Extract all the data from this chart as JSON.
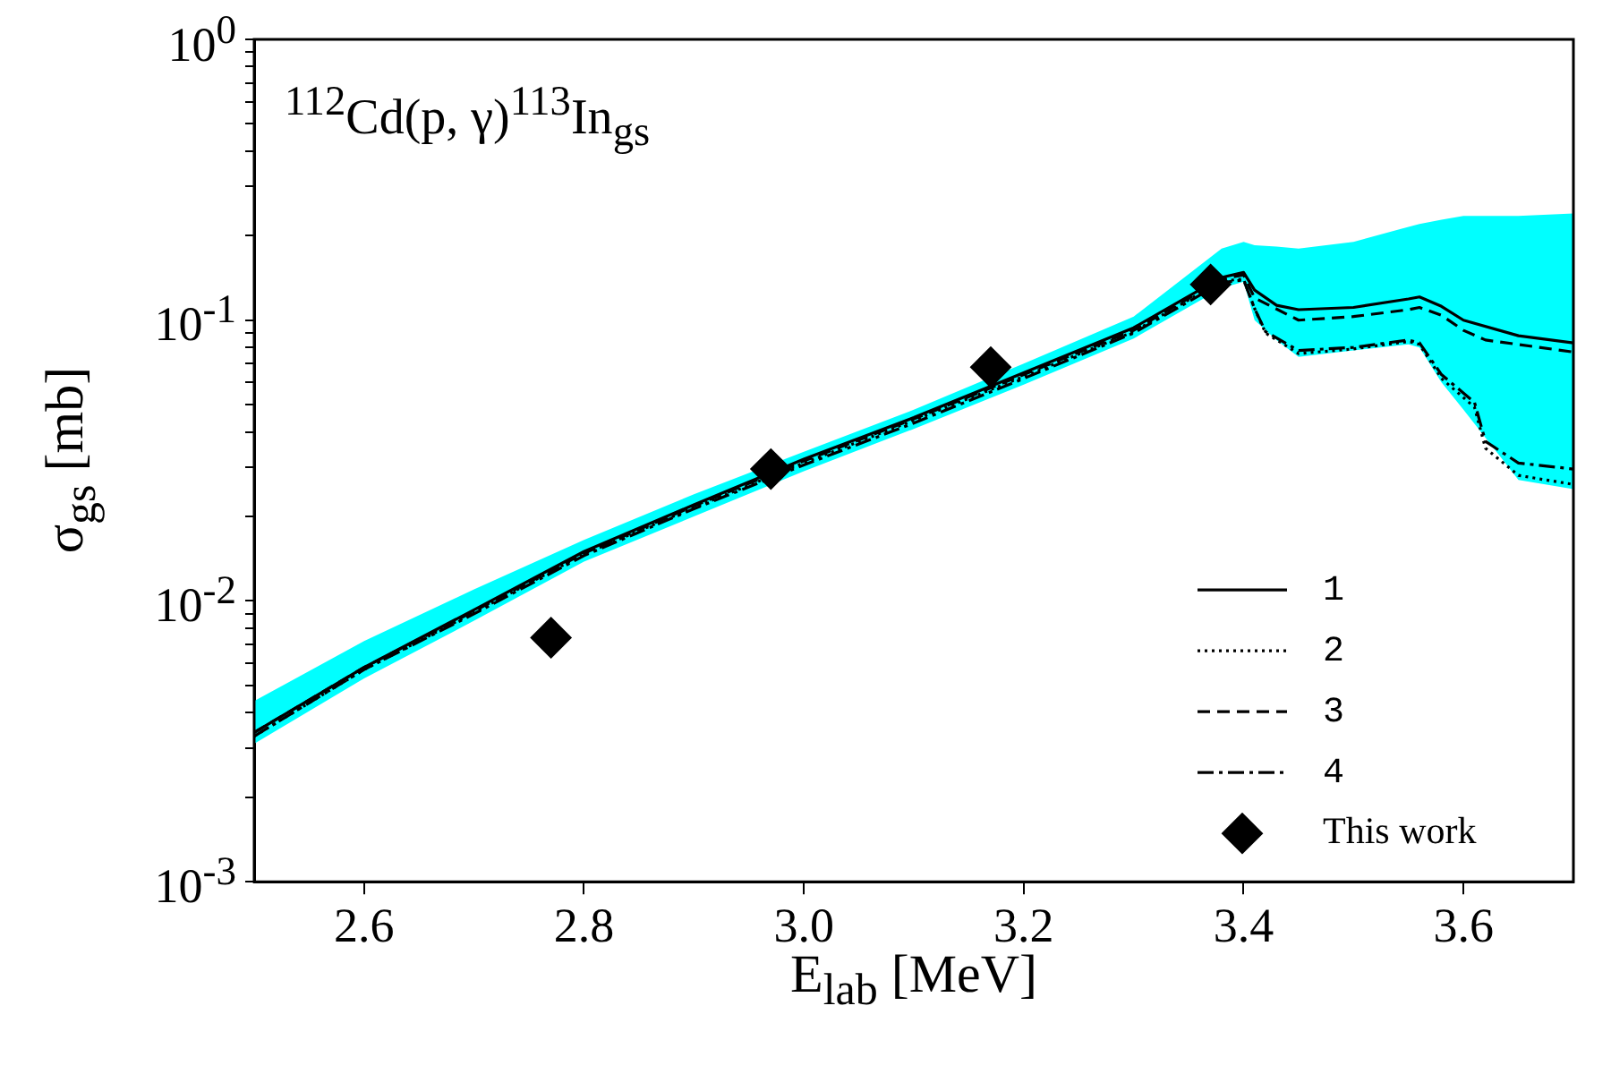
{
  "chart_data": {
    "type": "line",
    "annotations": [
      "$^{112}$Cd(p, γ)$^{113}$In$_{gs}$"
    ],
    "xlabel": "E$_{lab}$ [MeV]",
    "ylabel": "σ$_{gs}$ [mb]",
    "log": "y",
    "grid": false,
    "legend": "bottom right",
    "xlim": [
      2.5,
      3.7
    ],
    "xticks": [
      2.6,
      2.8,
      {
        "value": 3,
        "label": "3.0"
      },
      3.2,
      3.4,
      3.6
    ],
    "ylim": [
      0.001,
      1
    ],
    "yticks": [
      {
        "value": 0.001,
        "label": "10$^{-3}$"
      },
      {
        "value": 0.002,
        "label": null
      },
      {
        "value": 0.003,
        "label": null
      },
      {
        "value": 0.004,
        "label": null
      },
      {
        "value": 0.005,
        "label": null
      },
      {
        "value": 0.006,
        "label": null
      },
      {
        "value": 0.007,
        "label": null
      },
      {
        "value": 0.008,
        "label": null
      },
      {
        "value": 0.009,
        "label": null
      },
      {
        "value": 0.01,
        "label": "10$^{-2}$"
      },
      {
        "value": 0.02,
        "label": null
      },
      {
        "value": 0.03,
        "label": null
      },
      {
        "value": 0.04,
        "label": null
      },
      {
        "value": 0.05,
        "label": null
      },
      {
        "value": 0.06,
        "label": null
      },
      {
        "value": 0.07,
        "label": null
      },
      {
        "value": 0.08,
        "label": null
      },
      {
        "value": 0.09,
        "label": null
      },
      {
        "value": 0.1,
        "label": "10$^{-1}$"
      },
      {
        "value": 0.2,
        "label": null
      },
      {
        "value": 0.3,
        "label": null
      },
      {
        "value": 0.4,
        "label": null
      },
      {
        "value": 0.5,
        "label": null
      },
      {
        "value": 0.6,
        "label": null
      },
      {
        "value": 0.7,
        "label": null
      },
      {
        "value": 0.8,
        "label": null
      },
      {
        "value": 0.9,
        "label": null
      },
      {
        "value": 1,
        "label": "10$^{0}$"
      }
    ],
    "series": [
      {
        "name": "1",
        "line_style": "solid",
        "marker": "none",
        "color": "#000000",
        "x": [
          2.5,
          2.6,
          2.7,
          2.8,
          2.9,
          3.0,
          3.1,
          3.2,
          3.3,
          3.38,
          3.4,
          3.41,
          3.43,
          3.45,
          3.5,
          3.55,
          3.56,
          3.58,
          3.6,
          3.65,
          3.7
        ],
        "values": [
          0.0034,
          0.0058,
          0.0093,
          0.015,
          0.022,
          0.032,
          0.045,
          0.065,
          0.094,
          0.142,
          0.148,
          0.128,
          0.113,
          0.109,
          0.111,
          0.119,
          0.121,
          0.112,
          0.1,
          0.088,
          0.083
        ],
        "lower": [
          0.0031,
          0.0053,
          0.0085,
          0.0138,
          0.02,
          0.029,
          0.041,
          0.059,
          0.086,
          0.13,
          0.137,
          0.1,
          0.085,
          0.074,
          0.078,
          0.082,
          0.08,
          0.06,
          0.048,
          0.027,
          0.025
        ],
        "upper": [
          0.0044,
          0.0072,
          0.011,
          0.0165,
          0.024,
          0.034,
          0.048,
          0.07,
          0.103,
          0.18,
          0.19,
          0.185,
          0.183,
          0.18,
          0.19,
          0.215,
          0.22,
          0.228,
          0.235,
          0.235,
          0.24
        ]
      },
      {
        "name": "2",
        "line_style": "dotted",
        "marker": "none",
        "color": "#000000",
        "x": [
          2.5,
          2.6,
          2.7,
          2.8,
          2.9,
          3.0,
          3.1,
          3.2,
          3.3,
          3.38,
          3.4,
          3.41,
          3.42,
          3.45,
          3.5,
          3.55,
          3.56,
          3.58,
          3.6,
          3.61,
          3.62,
          3.65,
          3.7
        ],
        "values": [
          0.0033,
          0.0057,
          0.0091,
          0.0147,
          0.0215,
          0.031,
          0.044,
          0.063,
          0.091,
          0.138,
          0.14,
          0.11,
          0.09,
          0.076,
          0.079,
          0.084,
          0.082,
          0.062,
          0.053,
          0.049,
          0.035,
          0.028,
          0.026
        ]
      },
      {
        "name": "3",
        "line_style": "dashed",
        "marker": "none",
        "color": "#000000",
        "x": [
          2.5,
          2.6,
          2.7,
          2.8,
          2.9,
          3.0,
          3.1,
          3.2,
          3.3,
          3.38,
          3.4,
          3.41,
          3.45,
          3.5,
          3.55,
          3.56,
          3.58,
          3.6,
          3.62,
          3.7
        ],
        "values": [
          0.0034,
          0.0058,
          0.0092,
          0.0148,
          0.0218,
          0.0315,
          0.0445,
          0.064,
          0.092,
          0.14,
          0.145,
          0.12,
          0.1,
          0.103,
          0.109,
          0.111,
          0.104,
          0.092,
          0.085,
          0.077
        ]
      },
      {
        "name": "4",
        "line_style": "dashdot",
        "marker": "none",
        "color": "#000000",
        "x": [
          2.5,
          2.6,
          2.7,
          2.8,
          2.9,
          3.0,
          3.1,
          3.2,
          3.3,
          3.38,
          3.4,
          3.41,
          3.42,
          3.45,
          3.5,
          3.55,
          3.56,
          3.58,
          3.6,
          3.61,
          3.62,
          3.65,
          3.7
        ],
        "values": [
          0.0033,
          0.0057,
          0.009,
          0.0145,
          0.0213,
          0.0305,
          0.043,
          0.062,
          0.09,
          0.136,
          0.139,
          0.11,
          0.091,
          0.078,
          0.08,
          0.085,
          0.083,
          0.064,
          0.055,
          0.051,
          0.037,
          0.031,
          0.0295
        ]
      },
      {
        "name": "This work",
        "type": "scatter",
        "marker": "diamond",
        "color": "#000000",
        "x": [
          2.77,
          2.97,
          3.17,
          3.37
        ],
        "values": [
          0.0074,
          0.0295,
          0.068,
          0.134
        ]
      }
    ]
  }
}
